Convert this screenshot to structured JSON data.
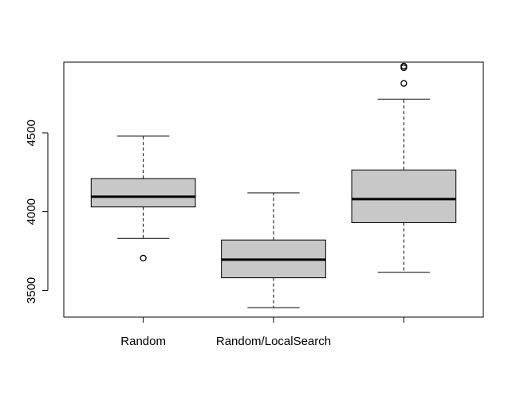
{
  "chart_data": {
    "type": "box",
    "title": "",
    "xlabel": "",
    "ylabel": "",
    "categories": [
      "Random",
      "Random/LocalSearch",
      ""
    ],
    "ylim": [
      3330,
      4950
    ],
    "yticks": [
      3500,
      4000,
      4500
    ],
    "grid": false,
    "legend": "none",
    "colors": {
      "box_fill": "#c8c8c8",
      "stroke": "#000000",
      "background": "#ffffff"
    },
    "boxes": [
      {
        "category": "Random",
        "whisker_low": 3830,
        "q1": 4030,
        "median": 4095,
        "q3": 4210,
        "whisker_high": 4480,
        "outliers": [
          3705
        ]
      },
      {
        "category": "Random/LocalSearch",
        "whisker_low": 3390,
        "q1": 3580,
        "median": 3695,
        "q3": 3820,
        "whisker_high": 4120,
        "outliers": []
      },
      {
        "category": "",
        "whisker_low": 3615,
        "q1": 3930,
        "median": 4080,
        "q3": 4265,
        "whisker_high": 4715,
        "outliers": [
          4815,
          4915,
          4925
        ]
      }
    ]
  }
}
